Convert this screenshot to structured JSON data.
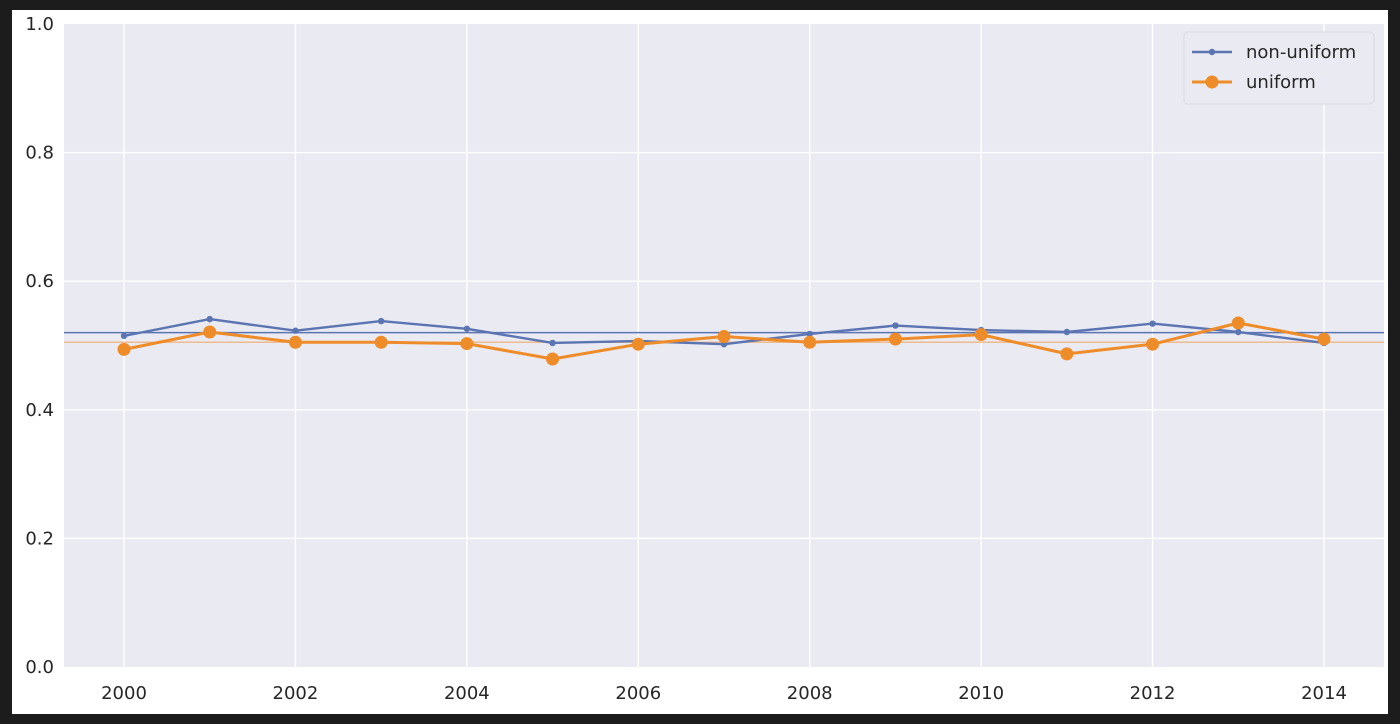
{
  "chart_data": {
    "type": "line",
    "title": "",
    "xlabel": "",
    "ylabel": "",
    "x": [
      2000,
      2001,
      2002,
      2003,
      2004,
      2005,
      2006,
      2007,
      2008,
      2009,
      2010,
      2011,
      2012,
      2013,
      2014
    ],
    "xlim": [
      1999.3,
      2014.7
    ],
    "ylim": [
      0.0,
      1.0
    ],
    "xticks": [
      "2000",
      "2002",
      "2004",
      "2006",
      "2008",
      "2010",
      "2012",
      "2014"
    ],
    "yticks": [
      "0.0",
      "0.2",
      "0.4",
      "0.6",
      "0.8",
      "1.0"
    ],
    "grid": true,
    "legend_position": "top-right",
    "series": [
      {
        "name": "non-uniform",
        "color": "#5b74b2",
        "marker": "small-dot",
        "values": [
          0.515,
          0.541,
          0.523,
          0.538,
          0.526,
          0.504,
          0.507,
          0.502,
          0.518,
          0.531,
          0.524,
          0.521,
          0.534,
          0.521,
          0.504
        ],
        "mean_line": 0.52
      },
      {
        "name": "uniform",
        "color": "#ef8c2a",
        "marker": "large-dot",
        "values": [
          0.494,
          0.521,
          0.505,
          0.505,
          0.503,
          0.479,
          0.502,
          0.514,
          0.505,
          0.51,
          0.517,
          0.487,
          0.502,
          0.535,
          0.51
        ],
        "mean_line": 0.505
      }
    ]
  }
}
